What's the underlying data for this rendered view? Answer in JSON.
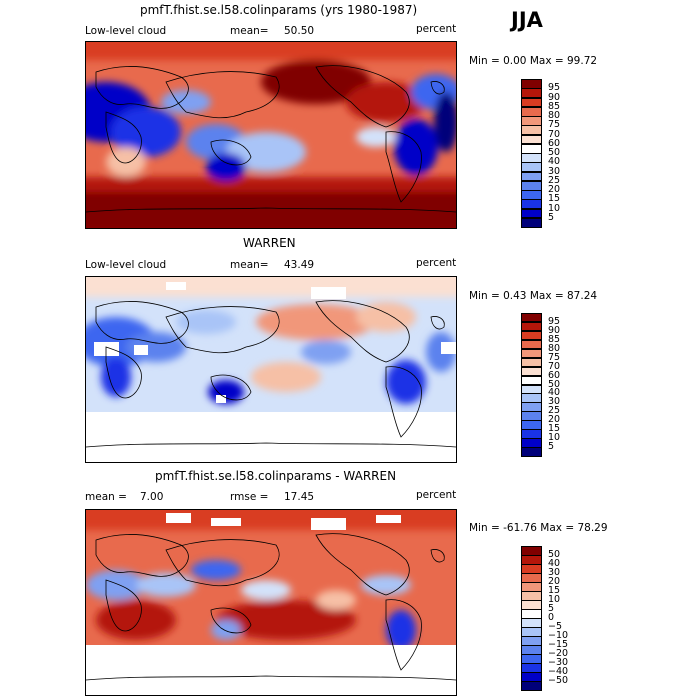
{
  "season": "JJA",
  "panels": [
    {
      "title": "pmfT.fhist.se.l58.colinparams (yrs 1980-1987)",
      "left_label": "Low-level cloud",
      "stat_label": "mean=",
      "stat_value": "50.50",
      "stat2_label": "",
      "stat2_value": "",
      "units": "percent",
      "range_text": "Min =    0.00 Max =   99.72",
      "colorbar_labels": [
        "95",
        "90",
        "85",
        "80",
        "75",
        "70",
        "60",
        "50",
        "40",
        "30",
        "25",
        "20",
        "15",
        "10",
        "5"
      ]
    },
    {
      "title": "WARREN",
      "left_label": "Low-level cloud",
      "stat_label": "mean=",
      "stat_value": "43.49",
      "stat2_label": "",
      "stat2_value": "",
      "units": "percent",
      "range_text": "Min =    0.43 Max =   87.24",
      "colorbar_labels": [
        "95",
        "90",
        "85",
        "80",
        "75",
        "70",
        "60",
        "50",
        "40",
        "30",
        "25",
        "20",
        "15",
        "10",
        "5"
      ]
    },
    {
      "title": "pmfT.fhist.se.l58.colinparams - WARREN",
      "left_label": "mean =",
      "stat_label": "",
      "stat_value": "7.00",
      "stat2_label": "rmse =",
      "stat2_value": "17.45",
      "units": "percent",
      "range_text": "Min = -61.76 Max =   78.29",
      "colorbar_labels": [
        "50",
        "40",
        "30",
        "20",
        "15",
        "10",
        "5",
        "0",
        "−5",
        "−10",
        "−15",
        "−20",
        "−30",
        "−40",
        "−50"
      ]
    }
  ],
  "colors": {
    "abs_scale": [
      "#00007a",
      "#0000c8",
      "#1a33e6",
      "#3d66f0",
      "#5c82ee",
      "#7fa0f2",
      "#a9c4f7",
      "#d3e2fa",
      "#ffffff",
      "#fbe0d2",
      "#f6c0a6",
      "#f1977a",
      "#e86a4d",
      "#d93c22",
      "#b4160a",
      "#800000"
    ],
    "diff_scale": [
      "#00007a",
      "#0000c8",
      "#1a33e6",
      "#3d66f0",
      "#5c82ee",
      "#7fa0f2",
      "#a9c4f7",
      "#d3e2fa",
      "#ffffff",
      "#fbe0d2",
      "#f6c0a6",
      "#f1977a",
      "#e86a4d",
      "#d93c22",
      "#b4160a",
      "#800000"
    ],
    "missing": "#ffffff"
  }
}
